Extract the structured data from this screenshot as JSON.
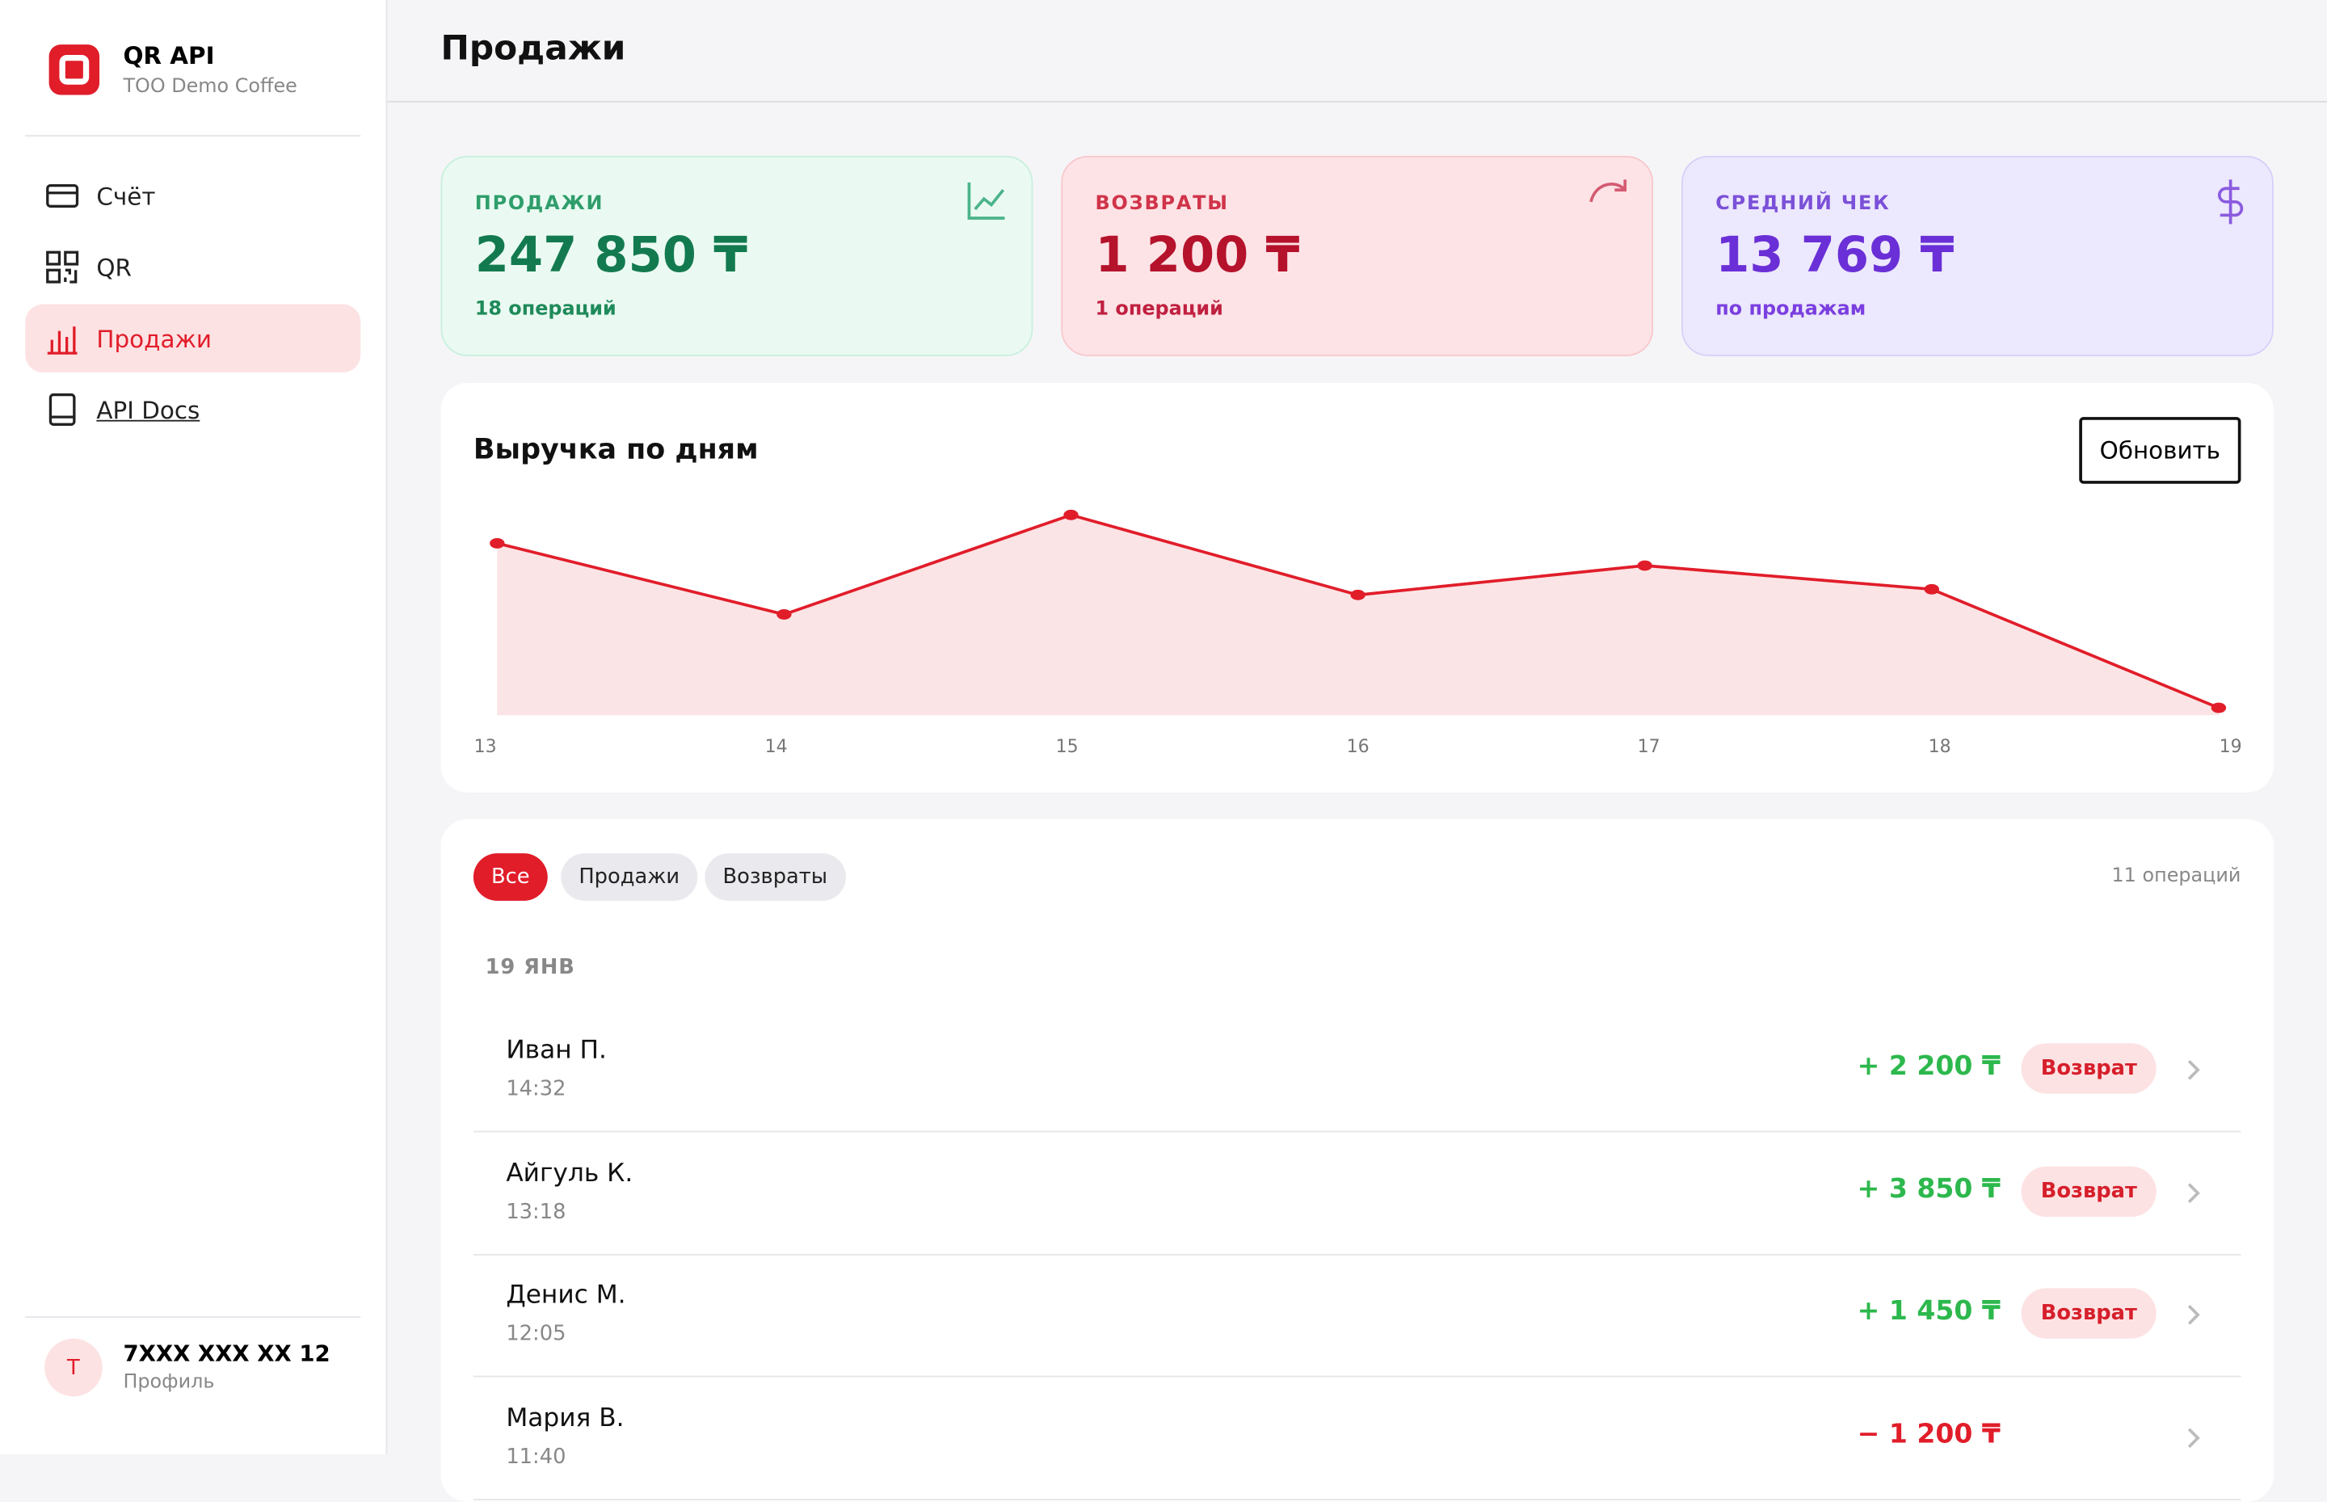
{
  "brand": {
    "title": "QR API",
    "subtitle": "ТОО Demo Coffee"
  },
  "nav": [
    {
      "label": "Счёт"
    },
    {
      "label": "QR"
    },
    {
      "label": "Продажи"
    },
    {
      "label": "API Docs"
    }
  ],
  "profile": {
    "avatar": "T",
    "phone": "7XXX XXX XX 12",
    "caption": "Профиль"
  },
  "header": {
    "title": "Продажи"
  },
  "stats": [
    {
      "label": "ПРОДАЖИ",
      "value": "247 850 ₸",
      "note": "18 операций"
    },
    {
      "label": "ВОЗВРАТЫ",
      "value": "1 200 ₸",
      "note": "1 операций"
    },
    {
      "label": "СРЕДНИЙ ЧЕК",
      "value": "13 769 ₸",
      "note": "по продажам"
    }
  ],
  "chart_data": {
    "type": "area",
    "title": "Выручка по дням",
    "categories": [
      "13",
      "14",
      "15",
      "16",
      "17",
      "18",
      "19"
    ],
    "values": [
      48600,
      28500,
      56600,
      34000,
      42300,
      35600,
      2100
    ],
    "color": "#e11d2a",
    "ylim": [
      0,
      58700
    ]
  },
  "chart_button": "Обновить",
  "transactions": {
    "filters": [
      "Все",
      "Продажи",
      "Возвраты"
    ],
    "count": "11 операций",
    "date": "19 ЯНВ",
    "rows": [
      {
        "name": "Иван П.",
        "time": "14:32",
        "amount": "+ 2 200 ₸",
        "action": "Возврат"
      },
      {
        "name": "Айгуль К.",
        "time": "13:18",
        "amount": "+ 3 850 ₸",
        "action": "Возврат"
      },
      {
        "name": "Денис М.",
        "time": "12:05",
        "amount": "+ 1 450 ₸",
        "action": "Возврат"
      },
      {
        "name": "Мария В.",
        "time": "11:40",
        "amount": "− 1 200 ₸"
      }
    ]
  }
}
